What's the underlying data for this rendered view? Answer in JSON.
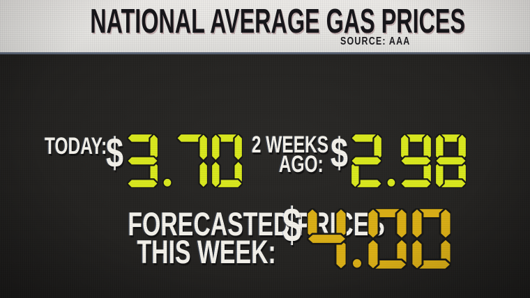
{
  "header": {
    "title": "NATIONAL AVERAGE GAS PRICES",
    "source_label": "SOURCE: AAA"
  },
  "board": {
    "currency_symbol": "$",
    "panels": [
      {
        "id": "today",
        "label_lines": [
          "TODAY:"
        ],
        "currency": "$",
        "value": "3.70",
        "value_color": "#d8e71f"
      },
      {
        "id": "two-weeks-ago",
        "label_lines": [
          "2 WEEKS",
          "AGO:"
        ],
        "currency": "$",
        "value": "2.98",
        "value_color": "#d8e71f"
      },
      {
        "id": "forecast-this-week",
        "label_lines": [
          "FORECASTED PRICES",
          "THIS WEEK:"
        ],
        "currency": "$",
        "value": "4.00",
        "value_color": "#d9ae17"
      }
    ]
  },
  "colors": {
    "header_bg": "#e5e4e1",
    "header_text": "#17161a",
    "board_bg": "#232220",
    "label_text": "#f2f0e9",
    "digital_green": "#d8e71f",
    "digital_gold": "#d9ae17",
    "segment_outline": "#191917"
  },
  "chart_data": {
    "type": "table",
    "title": "National Average Gas Prices",
    "source": "AAA",
    "categories": [
      "Today",
      "2 weeks ago",
      "Forecasted prices this week"
    ],
    "values": [
      3.7,
      2.98,
      4.0
    ],
    "currency": "$",
    "value_display": [
      "3.70",
      "2.98",
      "4.00"
    ]
  }
}
